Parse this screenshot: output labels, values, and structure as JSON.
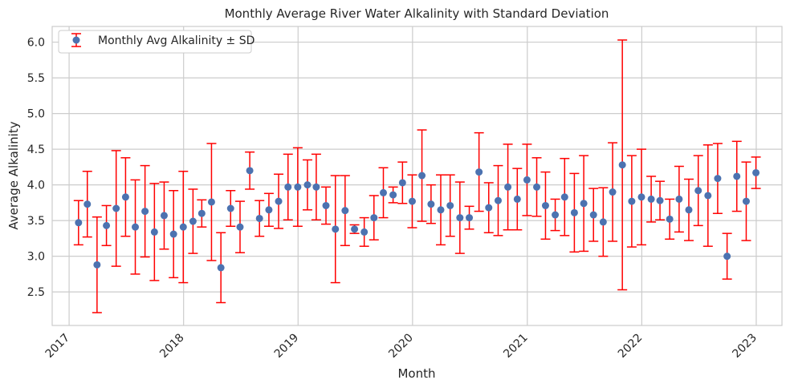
{
  "chart_data": {
    "type": "scatter",
    "title": "Monthly Average River Water Alkalinity with Standard Deviation",
    "xlabel": "Month",
    "ylabel": "Average Alkalinity",
    "xlim": [
      "2016-11-08",
      "2023-03-24"
    ],
    "ylim": [
      2.03,
      6.22
    ],
    "x_ticks": [
      "2017",
      "2018",
      "2019",
      "2020",
      "2021",
      "2022",
      "2023"
    ],
    "x_tick_dates": [
      "2017-01-01",
      "2018-01-01",
      "2019-01-01",
      "2020-01-01",
      "2021-01-01",
      "2022-01-01",
      "2023-01-01"
    ],
    "y_ticks": [
      2.5,
      3.0,
      3.5,
      4.0,
      4.5,
      5.0,
      5.5,
      6.0
    ],
    "y_tick_labels": [
      "2.5",
      "3.0",
      "3.5",
      "4.0",
      "4.5",
      "5.0",
      "5.5",
      "6.0"
    ],
    "grid": true,
    "legend_position": "top-left",
    "colors": {
      "marker": "#4c72b0",
      "errorbar": "#ff0000",
      "grid": "#cccccc",
      "axes": "#cccccc"
    },
    "series": [
      {
        "name": "Monthly Avg Alkalinity ± SD",
        "x": [
          "2017-01-31",
          "2017-02-28",
          "2017-03-31",
          "2017-04-30",
          "2017-05-31",
          "2017-06-30",
          "2017-07-31",
          "2017-08-31",
          "2017-09-30",
          "2017-10-31",
          "2017-11-30",
          "2017-12-31",
          "2018-01-31",
          "2018-02-28",
          "2018-03-31",
          "2018-04-30",
          "2018-05-31",
          "2018-06-30",
          "2018-07-31",
          "2018-08-31",
          "2018-09-30",
          "2018-10-31",
          "2018-11-30",
          "2018-12-31",
          "2019-01-31",
          "2019-02-28",
          "2019-03-31",
          "2019-04-30",
          "2019-05-31",
          "2019-06-30",
          "2019-07-31",
          "2019-08-31",
          "2019-09-30",
          "2019-10-31",
          "2019-11-30",
          "2019-12-31",
          "2020-01-31",
          "2020-02-29",
          "2020-03-31",
          "2020-04-30",
          "2020-05-31",
          "2020-06-30",
          "2020-07-31",
          "2020-08-31",
          "2020-09-30",
          "2020-10-31",
          "2020-11-30",
          "2020-12-31",
          "2021-01-31",
          "2021-02-28",
          "2021-03-31",
          "2021-04-30",
          "2021-05-31",
          "2021-06-30",
          "2021-07-31",
          "2021-08-31",
          "2021-09-30",
          "2021-10-31",
          "2021-11-30",
          "2021-12-31",
          "2022-01-31",
          "2022-02-28",
          "2022-03-31",
          "2022-04-30",
          "2022-05-31",
          "2022-06-30",
          "2022-07-31",
          "2022-08-31",
          "2022-09-30",
          "2022-10-31",
          "2022-11-30",
          "2022-12-31"
        ],
        "y": [
          3.47,
          3.73,
          2.88,
          3.43,
          3.67,
          3.83,
          3.41,
          3.63,
          3.34,
          3.57,
          3.31,
          3.41,
          3.49,
          3.6,
          3.76,
          2.84,
          3.67,
          3.41,
          4.2,
          3.53,
          3.65,
          3.77,
          3.97,
          3.97,
          4.0,
          3.97,
          3.71,
          3.38,
          3.64,
          3.38,
          3.34,
          3.54,
          3.89,
          3.86,
          4.03,
          3.77,
          4.13,
          3.73,
          3.65,
          3.71,
          3.54,
          3.54,
          4.18,
          3.68,
          3.78,
          3.97,
          3.8,
          4.07,
          3.97,
          3.71,
          3.58,
          3.83,
          3.61,
          3.74,
          3.58,
          3.48,
          3.9,
          4.28,
          3.77,
          3.83,
          3.8,
          3.78,
          3.52,
          3.8,
          3.65,
          3.92,
          3.85,
          4.09,
          3.0,
          4.12,
          3.77,
          4.17
        ],
        "sd": [
          0.31,
          0.46,
          0.67,
          0.28,
          0.81,
          0.55,
          0.66,
          0.64,
          0.68,
          0.47,
          0.61,
          0.78,
          0.45,
          0.19,
          0.82,
          0.49,
          0.25,
          0.36,
          0.26,
          0.25,
          0.23,
          0.38,
          0.46,
          0.55,
          0.35,
          0.46,
          0.26,
          0.75,
          0.49,
          0.06,
          0.2,
          0.31,
          0.35,
          0.11,
          0.29,
          0.37,
          0.64,
          0.27,
          0.49,
          0.43,
          0.5,
          0.16,
          0.55,
          0.35,
          0.49,
          0.6,
          0.43,
          0.5,
          0.41,
          0.47,
          0.22,
          0.54,
          0.55,
          0.67,
          0.37,
          0.48,
          0.69,
          1.75,
          0.64,
          0.67,
          0.32,
          0.27,
          0.28,
          0.46,
          0.43,
          0.49,
          0.71,
          0.49,
          0.32,
          0.49,
          0.55,
          0.22
        ]
      }
    ]
  }
}
